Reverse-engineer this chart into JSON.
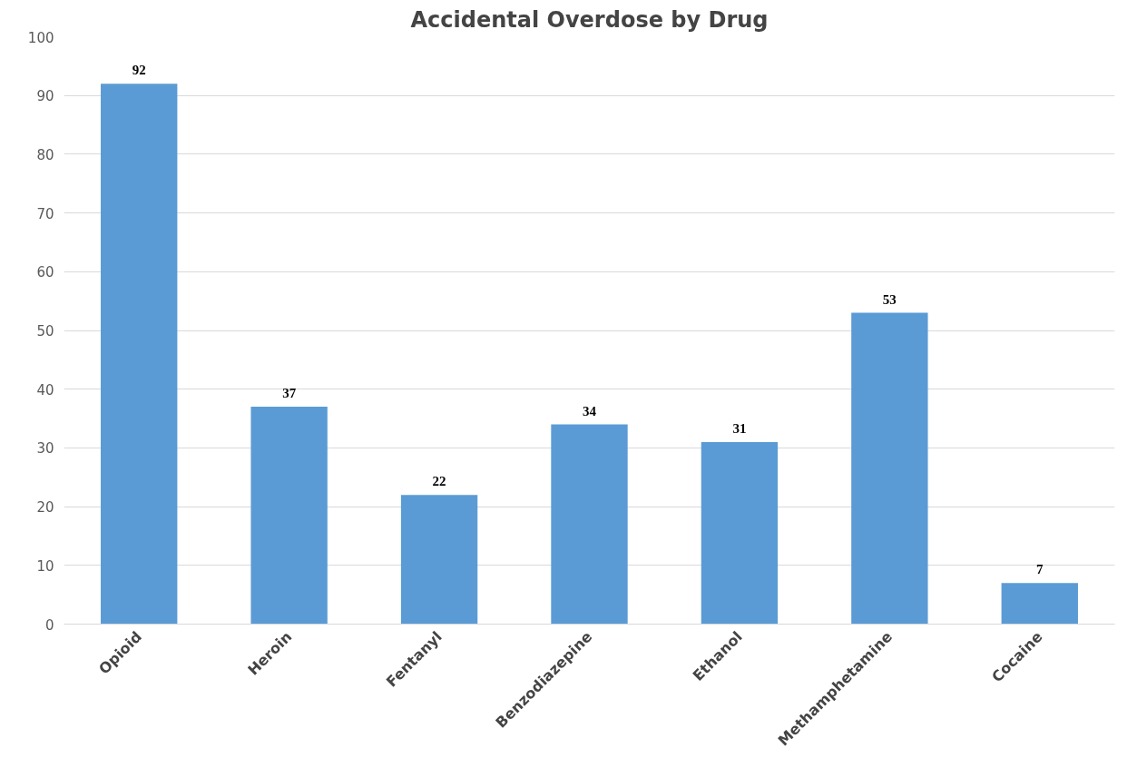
{
  "chart_data": {
    "type": "bar",
    "title": "Accidental Overdose by Drug",
    "categories": [
      "Opioid",
      "Heroin",
      "Fentanyl",
      "Benzodiazepine",
      "Ethanol",
      "Methamphetamine",
      "Cocaine"
    ],
    "values": [
      92,
      37,
      22,
      34,
      31,
      53,
      7
    ],
    "color": "#5b9bd5",
    "ylim": [
      0,
      100
    ],
    "yticks": [
      0,
      10,
      20,
      30,
      40,
      50,
      60,
      70,
      80,
      90,
      100
    ],
    "grid": "y",
    "data_labels": true
  }
}
